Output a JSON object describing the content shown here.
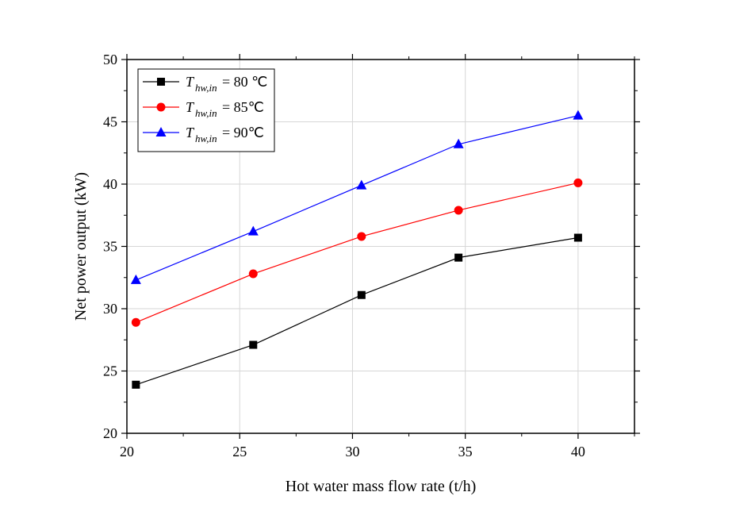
{
  "chart_data": {
    "type": "line",
    "title": "",
    "xlabel": "Hot water mass flow rate (t/h)",
    "ylabel": "Net power output (kW)",
    "xlim": [
      20,
      42.5
    ],
    "ylim": [
      20,
      50
    ],
    "xticks": [
      20,
      25,
      30,
      35,
      40
    ],
    "yticks": [
      20,
      25,
      30,
      35,
      40,
      45,
      50
    ],
    "grid": true,
    "legend_position": "top-left",
    "x": [
      20.4,
      25.6,
      30.4,
      34.7,
      40.0
    ],
    "series": [
      {
        "name": "T hw,in = 80 ℃",
        "legend_T": "T",
        "legend_sub": "hw,in",
        "legend_rest": " = 80 ℃",
        "color": "#000000",
        "marker": "square",
        "values": [
          23.9,
          27.1,
          31.1,
          34.1,
          35.7
        ]
      },
      {
        "name": "T hw,in = 85℃",
        "legend_T": "T",
        "legend_sub": "hw,in",
        "legend_rest": " = 85℃",
        "color": "#ff0000",
        "marker": "circle",
        "values": [
          28.9,
          32.8,
          35.8,
          37.9,
          40.1
        ]
      },
      {
        "name": "T hw,in = 90℃",
        "legend_T": "T",
        "legend_sub": "hw,in",
        "legend_rest": " = 90℃",
        "color": "#0000ff",
        "marker": "triangle",
        "values": [
          32.3,
          36.2,
          39.9,
          43.2,
          45.5
        ]
      }
    ]
  }
}
